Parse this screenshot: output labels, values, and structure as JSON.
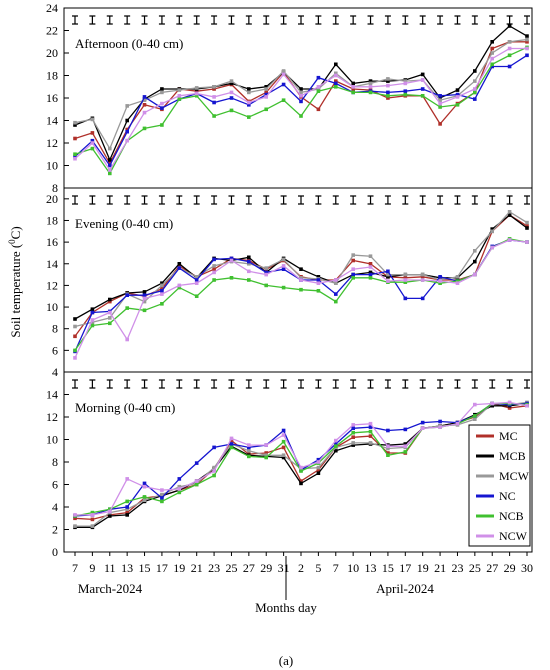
{
  "figure": {
    "ylabel_prefix": "Soil temperature (",
    "ylabel_sup": "0",
    "ylabel_suffix": "C)",
    "xlabel": "Months day",
    "month_labels": [
      "March-2024",
      "April-2024"
    ],
    "caption": "(a)"
  },
  "chart_data": [
    {
      "type": "line",
      "panel_label": "Afternoon (0-40 cm)",
      "ylim": [
        8,
        24
      ],
      "yticks": [
        8,
        10,
        12,
        14,
        16,
        18,
        20,
        22,
        24
      ],
      "categories": [
        "7",
        "9",
        "11",
        "13",
        "15",
        "17",
        "19",
        "21",
        "23",
        "25",
        "27",
        "29",
        "31",
        "2",
        "5",
        "7",
        "10",
        "13",
        "15",
        "17",
        "19",
        "21",
        "23",
        "25",
        "27",
        "29",
        "30"
      ],
      "error_bars": "top row of bars above each sampling day",
      "series": [
        {
          "name": "MC",
          "values": [
            12.4,
            12.9,
            10.2,
            13.2,
            15.4,
            15.0,
            16.8,
            16.6,
            16.8,
            17.2,
            15.7,
            16.5,
            18.3,
            16.1,
            15.0,
            17.5,
            16.8,
            16.7,
            16.0,
            16.2,
            16.2,
            13.7,
            15.5,
            16.5,
            20.4,
            21.0,
            21.0
          ]
        },
        {
          "name": "MCB",
          "values": [
            13.6,
            14.2,
            10.5,
            14.0,
            15.9,
            16.8,
            16.8,
            16.8,
            17.0,
            17.3,
            16.8,
            17.0,
            18.3,
            16.8,
            16.8,
            19.0,
            17.3,
            17.5,
            17.5,
            17.6,
            18.1,
            16.0,
            16.7,
            18.4,
            21.0,
            22.4,
            21.5
          ]
        },
        {
          "name": "MCW",
          "values": [
            13.8,
            14.1,
            11.5,
            15.3,
            15.8,
            16.5,
            16.7,
            16.9,
            17.0,
            17.5,
            16.5,
            16.8,
            18.4,
            16.5,
            16.8,
            18.2,
            17.0,
            17.3,
            17.7,
            17.5,
            17.6,
            15.8,
            16.2,
            17.5,
            20.0,
            21.0,
            21.2
          ]
        },
        {
          "name": "NC",
          "values": [
            10.8,
            12.2,
            10.0,
            13.0,
            16.1,
            15.1,
            15.9,
            16.4,
            15.6,
            16.0,
            15.4,
            16.3,
            17.2,
            15.7,
            17.8,
            17.3,
            16.5,
            16.6,
            16.5,
            16.6,
            16.8,
            16.2,
            16.3,
            15.9,
            18.8,
            18.8,
            19.8
          ]
        },
        {
          "name": "NCB",
          "values": [
            11.0,
            11.5,
            9.3,
            12.2,
            13.3,
            13.6,
            15.9,
            16.2,
            14.4,
            14.9,
            14.3,
            15.0,
            15.8,
            14.4,
            16.6,
            17.0,
            16.5,
            16.5,
            16.2,
            16.3,
            16.2,
            15.2,
            15.4,
            16.5,
            19.0,
            19.8,
            20.5
          ]
        },
        {
          "name": "NCW",
          "values": [
            10.6,
            12.0,
            9.6,
            12.2,
            14.7,
            15.5,
            16.2,
            16.4,
            16.1,
            16.5,
            15.6,
            16.1,
            18.1,
            16.2,
            17.0,
            18.0,
            17.0,
            17.0,
            17.1,
            17.3,
            17.6,
            15.5,
            16.1,
            16.8,
            19.5,
            20.4,
            20.4
          ]
        }
      ]
    },
    {
      "type": "line",
      "panel_label": "Evening (0-40 cm)",
      "ylim": [
        4,
        21
      ],
      "yticks": [
        4,
        6,
        8,
        10,
        12,
        14,
        16,
        18,
        20
      ],
      "categories": [
        "7",
        "9",
        "11",
        "13",
        "15",
        "17",
        "19",
        "21",
        "23",
        "25",
        "27",
        "29",
        "31",
        "2",
        "5",
        "7",
        "10",
        "13",
        "15",
        "17",
        "19",
        "21",
        "23",
        "25",
        "27",
        "29",
        "30"
      ],
      "series": [
        {
          "name": "MC",
          "values": [
            7.3,
            9.5,
            10.5,
            11.3,
            11.0,
            11.7,
            13.8,
            12.8,
            13.5,
            14.5,
            14.3,
            13.5,
            14.3,
            12.8,
            12.5,
            12.5,
            14.3,
            14.0,
            12.8,
            12.7,
            12.8,
            12.5,
            12.5,
            13.0,
            17.0,
            18.5,
            17.5
          ]
        },
        {
          "name": "MCB",
          "values": [
            8.9,
            9.8,
            10.7,
            11.3,
            11.4,
            12.2,
            14.0,
            12.7,
            14.5,
            14.3,
            14.6,
            13.2,
            14.5,
            13.5,
            12.8,
            12.2,
            13.0,
            13.2,
            12.8,
            13.0,
            13.0,
            12.7,
            12.7,
            14.2,
            17.2,
            18.5,
            17.3
          ]
        },
        {
          "name": "MCW",
          "values": [
            8.2,
            8.6,
            9.0,
            11.2,
            10.5,
            12.0,
            13.6,
            12.8,
            13.8,
            14.2,
            14.0,
            13.6,
            14.4,
            12.7,
            12.6,
            12.2,
            14.8,
            14.7,
            13.0,
            13.0,
            13.0,
            12.5,
            12.8,
            15.2,
            17.0,
            18.8,
            17.8
          ]
        },
        {
          "name": "NC",
          "values": [
            5.9,
            9.5,
            9.6,
            11.1,
            11.1,
            11.5,
            13.6,
            12.5,
            14.4,
            14.5,
            14.2,
            13.2,
            13.5,
            12.5,
            12.5,
            11.2,
            13.0,
            13.0,
            13.3,
            10.8,
            10.8,
            12.8,
            12.4,
            13.0,
            15.6,
            16.2,
            16.0
          ]
        },
        {
          "name": "NCB",
          "values": [
            6.0,
            8.3,
            8.5,
            9.9,
            9.7,
            10.3,
            11.8,
            11.0,
            12.5,
            12.7,
            12.5,
            12.0,
            11.8,
            11.6,
            11.5,
            10.5,
            12.7,
            12.7,
            12.3,
            12.3,
            12.5,
            12.2,
            12.4,
            13.0,
            15.5,
            16.3,
            16.0
          ]
        },
        {
          "name": "NCW",
          "values": [
            5.3,
            8.8,
            9.5,
            7.0,
            10.8,
            11.2,
            12.0,
            12.2,
            13.2,
            14.3,
            13.3,
            13.0,
            13.8,
            12.5,
            12.2,
            12.5,
            13.5,
            13.7,
            12.4,
            12.5,
            12.5,
            12.4,
            12.2,
            13.0,
            15.5,
            16.2,
            16.0
          ]
        }
      ]
    },
    {
      "type": "line",
      "panel_label": "Morning (0-40 cm)",
      "ylim": [
        0,
        16
      ],
      "yticks": [
        0,
        2,
        4,
        6,
        8,
        10,
        12,
        14
      ],
      "categories": [
        "7",
        "9",
        "11",
        "13",
        "15",
        "17",
        "19",
        "21",
        "23",
        "25",
        "27",
        "29",
        "31",
        "2",
        "5",
        "7",
        "10",
        "13",
        "15",
        "17",
        "19",
        "21",
        "23",
        "25",
        "27",
        "29",
        "30"
      ],
      "series": [
        {
          "name": "MC",
          "values": [
            3.0,
            2.9,
            3.3,
            3.5,
            4.8,
            5.0,
            5.5,
            6.0,
            7.4,
            9.9,
            8.7,
            8.8,
            9.3,
            6.3,
            7.3,
            9.3,
            10.2,
            10.3,
            8.8,
            8.8,
            11.0,
            11.2,
            11.5,
            12.0,
            13.2,
            12.8,
            13.0
          ]
        },
        {
          "name": "MCB",
          "values": [
            2.2,
            2.2,
            3.2,
            3.3,
            4.5,
            5.0,
            5.5,
            6.3,
            7.4,
            9.4,
            8.6,
            8.5,
            8.4,
            6.1,
            7.0,
            9.0,
            9.5,
            9.6,
            9.5,
            9.6,
            11.0,
            11.2,
            11.5,
            12.2,
            13.0,
            13.0,
            13.2
          ]
        },
        {
          "name": "MCW",
          "values": [
            2.3,
            2.3,
            3.5,
            3.8,
            4.6,
            5.1,
            5.8,
            6.1,
            7.5,
            9.6,
            9.0,
            8.6,
            8.6,
            7.4,
            7.5,
            9.3,
            9.7,
            9.7,
            9.2,
            9.3,
            11.0,
            11.2,
            11.3,
            11.8,
            13.2,
            13.1,
            13.3
          ]
        },
        {
          "name": "NC",
          "values": [
            3.2,
            3.3,
            3.8,
            4.0,
            6.1,
            4.8,
            6.5,
            7.9,
            9.3,
            9.6,
            9.3,
            9.5,
            10.8,
            7.3,
            8.2,
            9.6,
            11.0,
            11.1,
            10.8,
            10.9,
            11.5,
            11.6,
            11.5,
            12.1,
            13.2,
            13.1,
            13.2
          ]
        },
        {
          "name": "NCB",
          "values": [
            3.2,
            3.5,
            3.8,
            4.5,
            4.9,
            4.5,
            5.3,
            6.0,
            6.8,
            9.3,
            8.5,
            8.4,
            9.8,
            7.2,
            7.9,
            9.4,
            10.6,
            10.7,
            8.6,
            8.9,
            11.0,
            11.1,
            11.4,
            12.1,
            13.2,
            13.2,
            13.1
          ]
        },
        {
          "name": "NCW",
          "values": [
            3.3,
            3.3,
            3.6,
            6.5,
            5.8,
            5.5,
            5.6,
            6.3,
            7.2,
            10.1,
            9.5,
            9.5,
            10.4,
            7.5,
            8.0,
            9.9,
            11.3,
            11.4,
            9.4,
            9.4,
            11.0,
            11.1,
            11.4,
            13.1,
            13.2,
            13.3,
            13.0
          ]
        }
      ]
    }
  ],
  "legend": {
    "placement": "right of morning panel",
    "entries": [
      {
        "name": "MC",
        "color": "#b0302a"
      },
      {
        "name": "MCB",
        "color": "#000000"
      },
      {
        "name": "MCW",
        "color": "#999999"
      },
      {
        "name": "NC",
        "color": "#1515d0"
      },
      {
        "name": "NCB",
        "color": "#40c030"
      },
      {
        "name": "NCW",
        "color": "#d090e8"
      }
    ]
  }
}
